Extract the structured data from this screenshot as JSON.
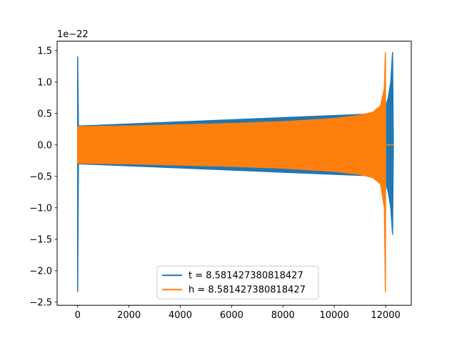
{
  "chart_data": {
    "type": "line",
    "title": "",
    "xlabel": "",
    "ylabel": "",
    "offset_text": "1e−22",
    "xlim": [
      -800,
      13000
    ],
    "ylim": [
      -2.55,
      1.65
    ],
    "x_ticks": [
      0,
      2000,
      4000,
      6000,
      8000,
      10000,
      12000
    ],
    "x_tick_labels": [
      "0",
      "2000",
      "4000",
      "6000",
      "8000",
      "10000",
      "12000"
    ],
    "y_ticks": [
      -2.5,
      -2.0,
      -1.5,
      -1.0,
      -0.5,
      0.0,
      0.5,
      1.0,
      1.5
    ],
    "y_tick_labels": [
      "−2.5",
      "−2.0",
      "−1.5",
      "−1.0",
      "−0.5",
      "0.0",
      "0.5",
      "1.0",
      "1.5"
    ],
    "grid": false,
    "legend_position": "lower-center",
    "series": [
      {
        "name": "t = 8.581427380818427",
        "color": "#1f77b4",
        "envelope": [
          {
            "x": 0,
            "upper": 1.4,
            "lower": -2.33
          },
          {
            "x": 30,
            "upper": 0.3,
            "lower": -0.3
          },
          {
            "x": 11950,
            "upper": 0.5,
            "lower": -0.5
          },
          {
            "x": 12000,
            "upper": 0.6,
            "lower": -0.6
          },
          {
            "x": 12100,
            "upper": 0.75,
            "lower": -0.75
          },
          {
            "x": 12200,
            "upper": 1.0,
            "lower": -1.0
          },
          {
            "x": 12270,
            "upper": 1.47,
            "lower": -1.42
          },
          {
            "x": 12300,
            "upper": 0.0,
            "lower": 0.0
          }
        ]
      },
      {
        "name": "h = 8.581427380818427",
        "color": "#ff7f0e",
        "envelope": [
          {
            "x": 0,
            "upper": 0.29,
            "lower": -0.29
          },
          {
            "x": 2000,
            "upper": 0.3,
            "lower": -0.3
          },
          {
            "x": 4000,
            "upper": 0.32,
            "lower": -0.32
          },
          {
            "x": 6000,
            "upper": 0.34,
            "lower": -0.34
          },
          {
            "x": 8000,
            "upper": 0.37,
            "lower": -0.37
          },
          {
            "x": 10000,
            "upper": 0.42,
            "lower": -0.42
          },
          {
            "x": 11000,
            "upper": 0.47,
            "lower": -0.47
          },
          {
            "x": 11500,
            "upper": 0.52,
            "lower": -0.52
          },
          {
            "x": 11800,
            "upper": 0.62,
            "lower": -0.62
          },
          {
            "x": 11950,
            "upper": 0.9,
            "lower": -1.0
          },
          {
            "x": 11990,
            "upper": 1.47,
            "lower": -2.33
          },
          {
            "x": 12000,
            "upper": 0.0,
            "lower": 0.0
          },
          {
            "x": 12300,
            "upper": 0.0,
            "lower": 0.0
          }
        ]
      }
    ]
  }
}
